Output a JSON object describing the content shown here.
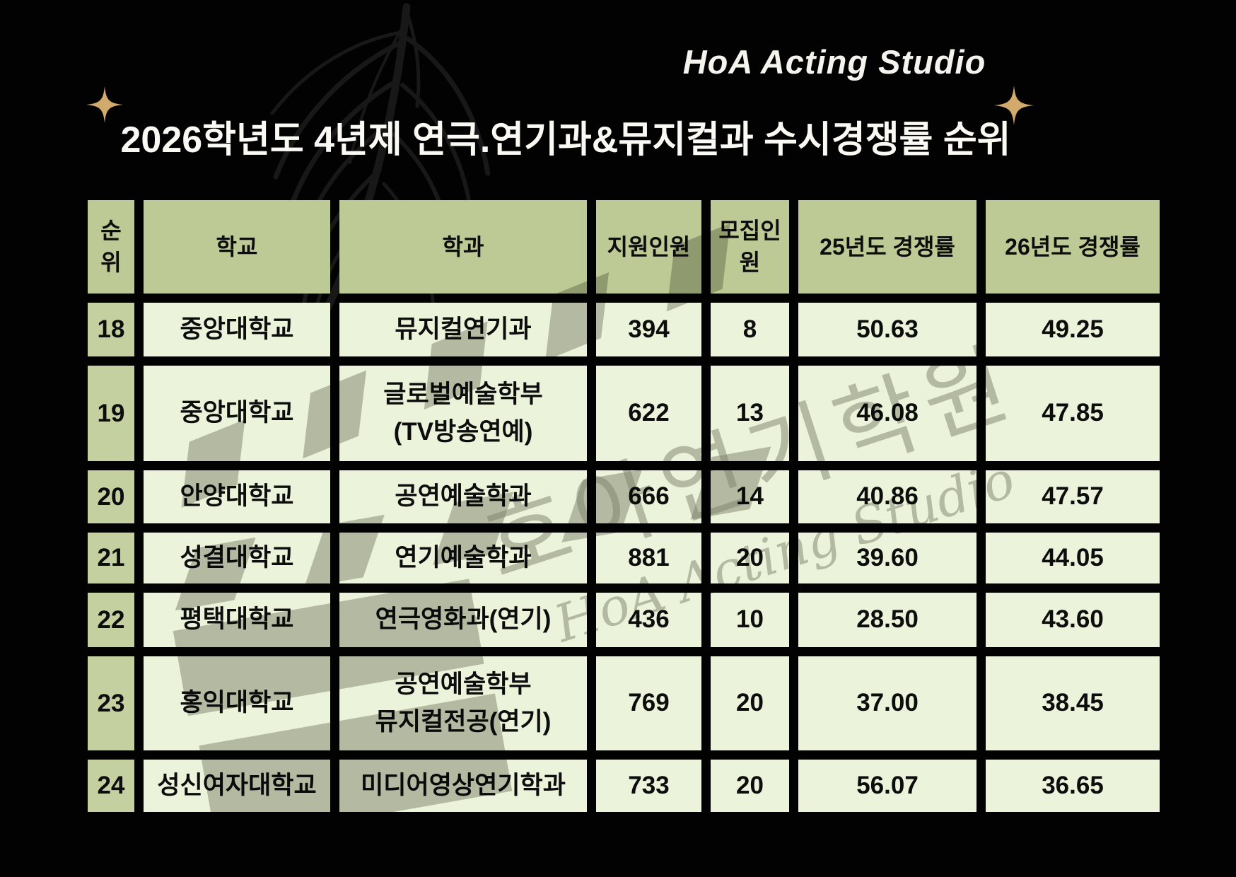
{
  "logo": {
    "text": "HoA Acting Studio"
  },
  "title": {
    "text": "2026학년도 4년제 연극.연기과&뮤지컬과 수시경쟁률 순위"
  },
  "colors": {
    "background": "#020202",
    "header_cell": "#bdca95",
    "rank_cell": "#c4d0a0",
    "data_cell": "#ebf3da",
    "cell_text": "#0d0d0d",
    "title_text": "#faf9f4",
    "sparkle_gold": "#d2aa6c",
    "watermark_gray": "#87877d",
    "palm_leaf": "#181818"
  },
  "watermark": {
    "korean": "호아연기학원",
    "english": "HoA Acting Studio"
  },
  "chart_data": {
    "type": "table",
    "title": "2026학년도 4년제 연극.연기과&뮤지컬과 수시경쟁률 순위",
    "columns": [
      {
        "key": "rank",
        "label": "순위"
      },
      {
        "key": "school",
        "label": "학교"
      },
      {
        "key": "department",
        "label": "학과"
      },
      {
        "key": "applicants",
        "label": "지원인원"
      },
      {
        "key": "quota",
        "label": "모집인원"
      },
      {
        "key": "rate_2025",
        "label": "25년도 경쟁률"
      },
      {
        "key": "rate_2026",
        "label": "26년도 경쟁률"
      }
    ],
    "rows": [
      {
        "rank": "18",
        "school": "중앙대학교",
        "department": "뮤지컬연기과",
        "applicants": "394",
        "quota": "8",
        "rate_2025": "50.63",
        "rate_2026": "49.25"
      },
      {
        "rank": "19",
        "school": "중앙대학교",
        "department": "글로벌예술학부\n(TV방송연예)",
        "applicants": "622",
        "quota": "13",
        "rate_2025": "46.08",
        "rate_2026": "47.85"
      },
      {
        "rank": "20",
        "school": "안양대학교",
        "department": "공연예술학과",
        "applicants": "666",
        "quota": "14",
        "rate_2025": "40.86",
        "rate_2026": "47.57"
      },
      {
        "rank": "21",
        "school": "성결대학교",
        "department": "연기예술학과",
        "applicants": "881",
        "quota": "20",
        "rate_2025": "39.60",
        "rate_2026": "44.05"
      },
      {
        "rank": "22",
        "school": "평택대학교",
        "department": "연극영화과(연기)",
        "applicants": "436",
        "quota": "10",
        "rate_2025": "28.50",
        "rate_2026": "43.60"
      },
      {
        "rank": "23",
        "school": "홍익대학교",
        "department": "공연예술학부\n뮤지컬전공(연기)",
        "applicants": "769",
        "quota": "20",
        "rate_2025": "37.00",
        "rate_2026": "38.45"
      },
      {
        "rank": "24",
        "school": "성신여자대학교",
        "department": "미디어영상연기학과",
        "applicants": "733",
        "quota": "20",
        "rate_2025": "56.07",
        "rate_2026": "36.65"
      }
    ]
  }
}
